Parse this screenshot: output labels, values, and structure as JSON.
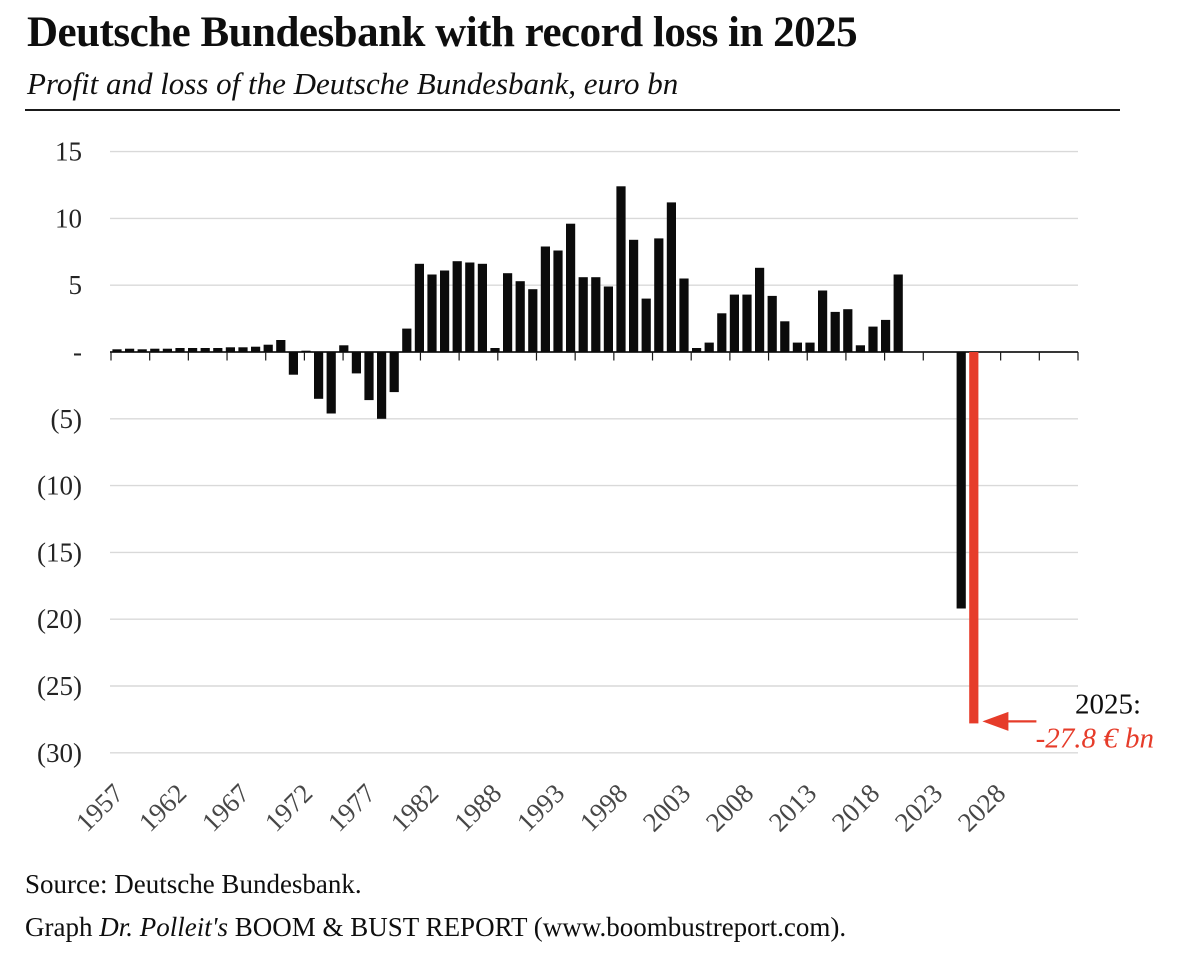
{
  "header": {
    "title": "Deutsche Bundesbank with record loss in 2025",
    "subtitle": "Profit and loss of the Deutsche Bundesbank, euro bn"
  },
  "footer": {
    "source": "Source: Deutsche Bundesbank.",
    "credit_prefix": "Graph ",
    "credit_italic": "Dr. Polleit's",
    "credit_rest": " BOOM & BUST REPORT (www.boombustreport.com)."
  },
  "annotation": {
    "line1": "2025:",
    "line2": "-27.8 € bn"
  },
  "colors": {
    "bar": "#0b0b0b",
    "highlight": "#e63c2a",
    "grid": "#d9d9d9",
    "axis": "#1a1a1a",
    "y_label": "#242424",
    "x_label": "#474747"
  },
  "chart_data": {
    "type": "bar",
    "title": "Profit and loss of the Deutsche Bundesbank, euro bn",
    "xlabel": "",
    "ylabel": "euro bn",
    "ylim": [
      -30,
      15
    ],
    "grid": true,
    "legend": false,
    "highlight_year": 2025,
    "y_ticks": [
      15,
      10,
      5,
      0,
      -5,
      -10,
      -15,
      -20,
      -25,
      -30
    ],
    "y_tick_labels": [
      "15",
      "10",
      "5",
      "-",
      "(5)",
      "(10)",
      "(15)",
      "(20)",
      "(25)",
      "(30)"
    ],
    "x_tick_labels": [
      "1957",
      "1962",
      "1967",
      "1972",
      "1977",
      "1982",
      "1988",
      "1993",
      "1998",
      "2003",
      "2008",
      "2013",
      "2018",
      "2023",
      "2028"
    ],
    "years": [
      1957,
      1958,
      1959,
      1960,
      1961,
      1962,
      1963,
      1964,
      1965,
      1966,
      1967,
      1968,
      1969,
      1970,
      1971,
      1972,
      1973,
      1974,
      1975,
      1976,
      1977,
      1978,
      1979,
      1980,
      1981,
      1982,
      1983,
      1984,
      1985,
      1986,
      1987,
      1988,
      1989,
      1990,
      1991,
      1992,
      1993,
      1994,
      1995,
      1996,
      1997,
      1998,
      1999,
      2000,
      2001,
      2002,
      2003,
      2004,
      2005,
      2006,
      2007,
      2008,
      2009,
      2010,
      2011,
      2012,
      2013,
      2014,
      2015,
      2016,
      2017,
      2018,
      2019,
      2020,
      2021,
      2022,
      2023,
      2024,
      2025
    ],
    "values": [
      0.2,
      0.25,
      0.2,
      0.25,
      0.25,
      0.3,
      0.3,
      0.3,
      0.3,
      0.35,
      0.35,
      0.4,
      0.55,
      0.9,
      -1.7,
      0.1,
      -3.5,
      -4.6,
      0.5,
      -1.6,
      -3.6,
      -5.0,
      -3.0,
      1.75,
      6.6,
      5.8,
      6.1,
      6.8,
      6.7,
      6.6,
      0.3,
      5.9,
      5.3,
      4.7,
      7.9,
      7.6,
      9.6,
      5.6,
      5.6,
      4.9,
      12.4,
      8.4,
      4.0,
      8.5,
      11.2,
      5.5,
      0.3,
      0.7,
      2.9,
      4.3,
      4.3,
      6.3,
      4.2,
      2.3,
      0.7,
      0.7,
      4.6,
      3.0,
      3.2,
      0.5,
      1.9,
      2.4,
      5.8,
      0,
      0,
      0,
      0,
      -19.2,
      -27.8
    ]
  }
}
